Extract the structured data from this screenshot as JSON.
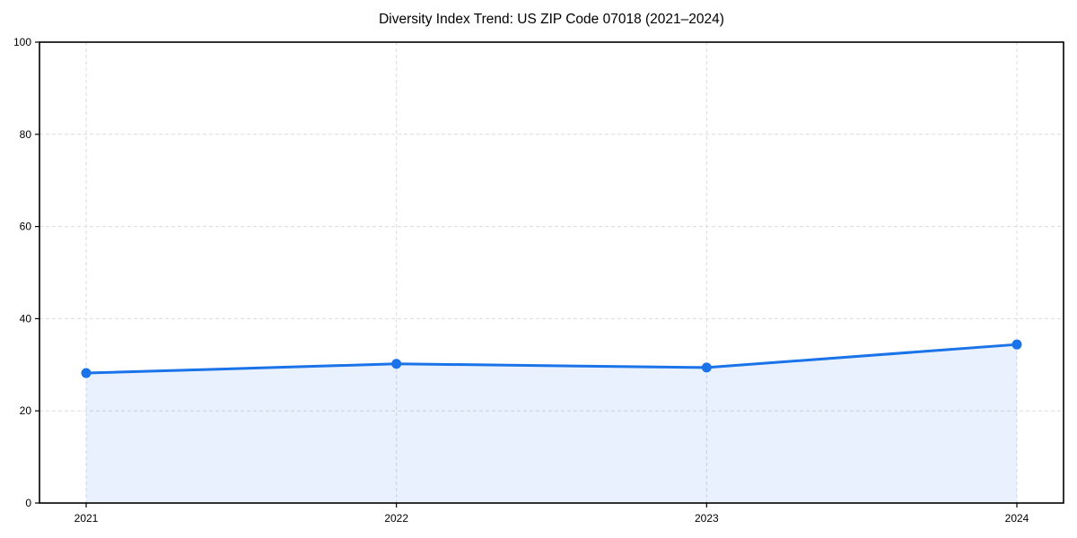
{
  "chart_data": {
    "type": "area",
    "title": "Diversity Index Trend: US ZIP Code 07018 (2021–2024)",
    "categories": [
      "2021",
      "2022",
      "2023",
      "2024"
    ],
    "series": [
      {
        "name": "Diversity Index",
        "values": [
          28.2,
          30.2,
          29.4,
          34.4
        ]
      }
    ],
    "xlabel": "",
    "ylabel": "",
    "ylim": [
      0,
      100
    ],
    "yticks": [
      0,
      20,
      40,
      60,
      80,
      100
    ],
    "grid": "dashed, both axes",
    "legend": "none"
  },
  "colors": {
    "line": "#1a73e8",
    "marker": "#1a73e8",
    "fill": "rgba(26,115,232,0.10)",
    "grid": "#dcdcdc",
    "axis": "#000000",
    "text": "#000000",
    "background": "#ffffff"
  }
}
